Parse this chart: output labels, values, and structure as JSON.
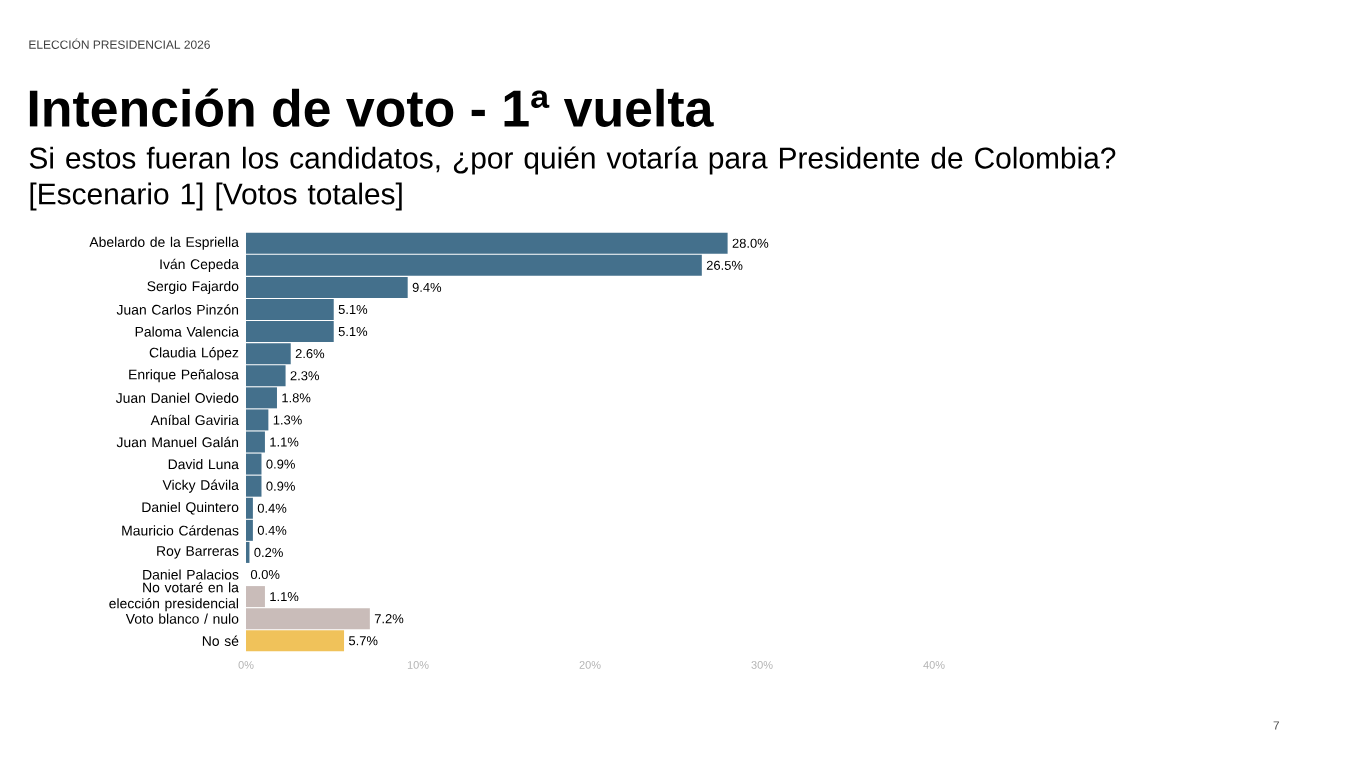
{
  "chart_data": {
    "type": "bar",
    "orientation": "horizontal",
    "title": "Intención de voto - 1ª vuelta",
    "subtitle": "Si estos fueran los candidatos, ¿por quién votaría para Presidente de Colombia? [Escenario 1] [Votos totales]",
    "annotations": [
      "ELECCIÓN PRESIDENCIAL 2026",
      "7"
    ],
    "categories": [
      "Abelardo de la Espriella",
      "Iván Cepeda",
      "Sergio Fajardo",
      "Juan Carlos Pinzón",
      "Paloma Valencia",
      "Claudia López",
      "Enrique Peñalosa",
      "Juan Daniel Oviedo",
      "Aníbal Gaviria",
      "Juan Manuel Galán",
      "David Luna",
      "Vicky Dávila",
      "Daniel Quintero",
      "Mauricio Cárdenas",
      "Roy Barreras",
      "Daniel Palacios",
      "No votaré en la elección presidencial",
      "Voto blanco / nulo",
      "No sé"
    ],
    "values": [
      28.0,
      26.5,
      9.4,
      5.1,
      5.1,
      2.6,
      2.3,
      1.8,
      1.3,
      1.1,
      0.9,
      0.9,
      0.4,
      0.4,
      0.2,
      0.0,
      1.1,
      7.2,
      5.7
    ],
    "value_labels": [
      "28.0%",
      "26.5%",
      "9.4%",
      "5.1%",
      "5.1%",
      "2.6%",
      "2.3%",
      "1.8%",
      "1.3%",
      "1.1%",
      "0.9%",
      "0.9%",
      "0.4%",
      "0.4%",
      "0.2%",
      "0.0%",
      "1.1%",
      "7.2%",
      "5.7%"
    ],
    "colors": [
      "#44708c",
      "#44708c",
      "#44708c",
      "#44708c",
      "#44708c",
      "#44708c",
      "#44708c",
      "#44708c",
      "#44708c",
      "#44708c",
      "#44708c",
      "#44708c",
      "#44708c",
      "#44708c",
      "#44708c",
      "#44708c",
      "#c9bcb9",
      "#c9bcb9",
      "#f0c25a"
    ],
    "xlim": [
      0,
      40
    ],
    "xticks": [
      {
        "value": 0,
        "label": "0%"
      },
      {
        "value": 10,
        "label": "10%"
      },
      {
        "value": 20,
        "label": "20%"
      },
      {
        "value": 30,
        "label": "30%"
      },
      {
        "value": 40,
        "label": "40%"
      }
    ]
  }
}
